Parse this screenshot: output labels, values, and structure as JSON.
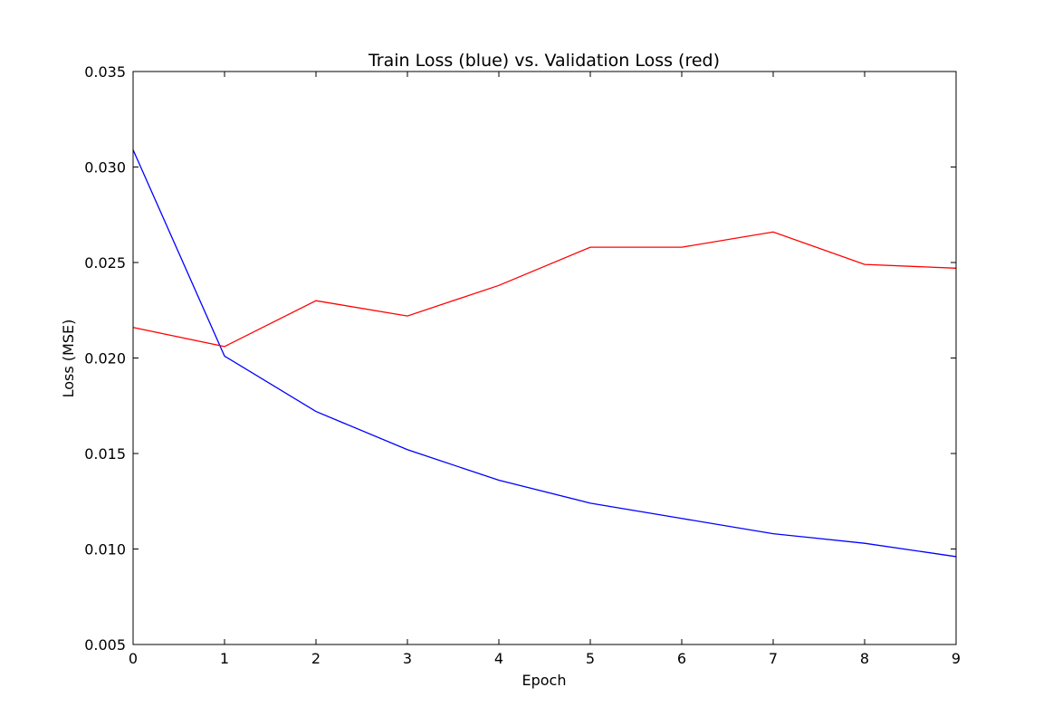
{
  "chart_data": {
    "type": "line",
    "title": "Train Loss (blue) vs. Validation Loss (red)",
    "xlabel": "Epoch",
    "ylabel": "Loss (MSE)",
    "xlim": [
      0,
      9
    ],
    "ylim": [
      0.005,
      0.035
    ],
    "x_ticks": [
      0,
      1,
      2,
      3,
      4,
      5,
      6,
      7,
      8,
      9
    ],
    "x_tick_labels": [
      "0",
      "1",
      "2",
      "3",
      "4",
      "5",
      "6",
      "7",
      "8",
      "9"
    ],
    "y_ticks": [
      0.005,
      0.01,
      0.015,
      0.02,
      0.025,
      0.03,
      0.035
    ],
    "y_tick_labels": [
      "0.005",
      "0.010",
      "0.015",
      "0.020",
      "0.025",
      "0.030",
      "0.035"
    ],
    "grid": false,
    "x": [
      0,
      1,
      2,
      3,
      4,
      5,
      6,
      7,
      8,
      9
    ],
    "series": [
      {
        "color": "#0000ff",
        "values": [
          0.0309,
          0.0201,
          0.0172,
          0.0152,
          0.0136,
          0.0124,
          0.0116,
          0.0108,
          0.0103,
          0.0096
        ]
      },
      {
        "color": "#ff0000",
        "values": [
          0.0216,
          0.0206,
          0.023,
          0.0222,
          0.0238,
          0.0258,
          0.0258,
          0.0266,
          0.0249,
          0.0247
        ]
      }
    ]
  }
}
